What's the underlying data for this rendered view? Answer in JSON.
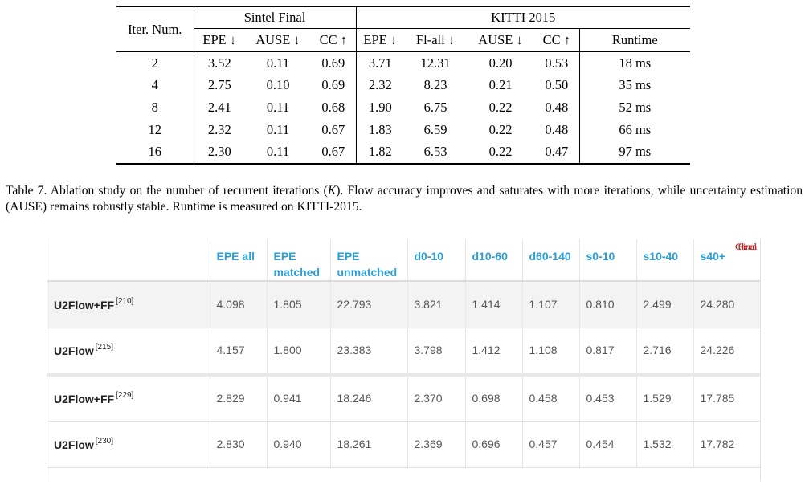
{
  "table7": {
    "iter_header": "Iter. Num.",
    "group_sintel": "Sintel Final",
    "group_kitti": "KITTI 2015",
    "cols": [
      "EPE ↓",
      "AUSE ↓",
      "CC ↑",
      "EPE ↓",
      "Fl-all ↓",
      "AUSE ↓",
      "CC ↑",
      "Runtime"
    ],
    "rows": [
      [
        "2",
        "3.52",
        "0.11",
        "0.69",
        "3.71",
        "12.31",
        "0.20",
        "0.53",
        "18 ms"
      ],
      [
        "4",
        "2.75",
        "0.10",
        "0.69",
        "2.32",
        "8.23",
        "0.21",
        "0.50",
        "35 ms"
      ],
      [
        "8",
        "2.41",
        "0.11",
        "0.68",
        "1.90",
        "6.75",
        "0.22",
        "0.48",
        "52 ms"
      ],
      [
        "12",
        "2.32",
        "0.11",
        "0.67",
        "1.83",
        "6.59",
        "0.22",
        "0.48",
        "66 ms"
      ],
      [
        "16",
        "2.30",
        "0.11",
        "0.67",
        "1.82",
        "6.53",
        "0.22",
        "0.47",
        "97 ms"
      ]
    ]
  },
  "caption": {
    "lead": "Table 7.  Ablation study on the number of recurrent iterations (",
    "var": "K",
    "rest": ").  Flow accuracy improves and saturates with more iterations, while uncertainty estimation (AUSE) remains robustly stable. Runtime is measured on KITTI-2015."
  },
  "benchmark": {
    "headers": [
      "",
      "EPE all",
      "EPE matched",
      "EPE unmatched",
      "d0-10",
      "d10-60",
      "d60-140",
      "s0-10",
      "s10-40",
      "s40+"
    ],
    "rows": [
      {
        "method": "U2Flow+FF",
        "ref": "[210]",
        "pass": "Final",
        "values": [
          "4.098",
          "1.805",
          "22.793",
          "3.821",
          "1.414",
          "1.107",
          "0.810",
          "2.499",
          "24.280"
        ]
      },
      {
        "method": "U2Flow",
        "ref": "[215]",
        "pass": "Final",
        "values": [
          "4.157",
          "1.800",
          "23.383",
          "3.798",
          "1.412",
          "1.108",
          "0.817",
          "2.716",
          "24.226"
        ]
      },
      {
        "method": "U2Flow+FF",
        "ref": "[229]",
        "pass": "Clean",
        "values": [
          "2.829",
          "0.941",
          "18.246",
          "2.370",
          "0.698",
          "0.458",
          "0.453",
          "1.529",
          "17.785"
        ]
      },
      {
        "method": "U2Flow",
        "ref": "[230]",
        "pass": "Clean",
        "values": [
          "2.830",
          "0.940",
          "18.261",
          "2.369",
          "0.696",
          "0.457",
          "0.454",
          "1.532",
          "17.782"
        ]
      }
    ]
  },
  "colors": {
    "header_blue": "#2a9fd6",
    "pass_red": "#cc1f1f"
  }
}
